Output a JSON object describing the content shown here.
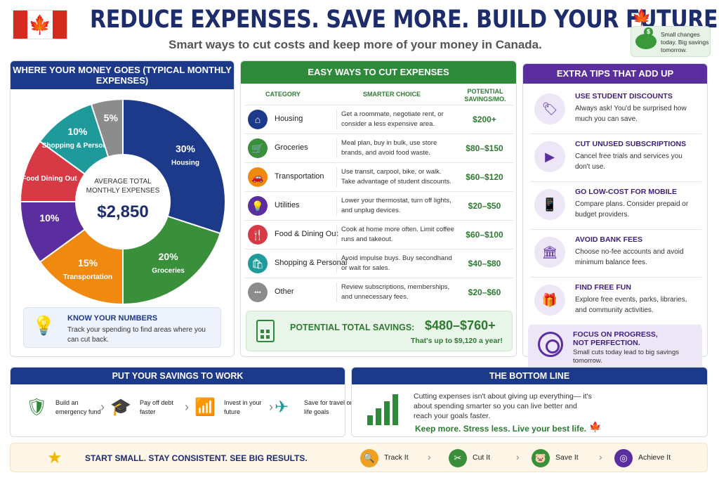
{
  "header": {
    "headline": "REDUCE EXPENSES. SAVE MORE. BUILD YOUR FUTURE.",
    "subtitle": "Smart ways to cut costs and keep more of your money in Canada.",
    "badge_text": "Small changes today. Big savings tomorrow."
  },
  "left_panel": {
    "title": "WHERE YOUR MONEY GOES (TYPICAL MONTHLY EXPENSES)",
    "center_label": "AVERAGE TOTAL MONTHLY EXPENSES",
    "center_value": "$2,850",
    "segments": [
      {
        "label": "Housing",
        "pct_text": "30%",
        "value": 30,
        "color": "#1d3a8a",
        "icon": "house-icon"
      },
      {
        "label": "Groceries",
        "pct_text": "20%",
        "value": 20,
        "color": "#3a8f3a",
        "icon": "cart-icon"
      },
      {
        "label": "Transportation",
        "pct_text": "15%",
        "value": 15,
        "color": "#f0890f",
        "icon": "car-icon"
      },
      {
        "label": "",
        "pct_text": "10%",
        "value": 10,
        "color": "#5b2ea0",
        "icon": "bulb-icon"
      },
      {
        "label": "Food Dining Out",
        "pct_text": "",
        "value": 10,
        "color": "#d83a45",
        "icon": "fork-knife-icon"
      },
      {
        "label": "Shopping & Personal",
        "pct_text": "10%",
        "value": 10,
        "color": "#1e9a9a",
        "icon": ""
      },
      {
        "label": "",
        "pct_text": "5%",
        "value": 5,
        "color": "#8c8c8c",
        "icon": "dots-icon"
      }
    ],
    "know_title": "KNOW YOUR NUMBERS",
    "know_text": "Track your spending to find areas where you can cut back."
  },
  "middle_panel": {
    "title": "EASY WAYS TO CUT EXPENSES",
    "col_category": "CATEGORY",
    "col_choice": "SMARTER CHOICE",
    "col_savings": "POTENTIAL SAVINGS/MO.",
    "rows": [
      {
        "category": "Housing",
        "choice": "Get a roommate, negotiate rent, or consider a less expensive area.",
        "savings": "$200+",
        "color": "#1d3a8a",
        "icon": "house-icon",
        "glyph": "⌂"
      },
      {
        "category": "Groceries",
        "choice": "Meal plan, buy in bulk, use store brands, and avoid food waste.",
        "savings": "$80–$150",
        "color": "#3a8f3a",
        "icon": "cart-icon",
        "glyph": "🛒"
      },
      {
        "category": "Transportation",
        "choice": "Use transit, carpool, bike, or walk. Take advantage of student discounts.",
        "savings": "$60–$120",
        "color": "#f0890f",
        "icon": "car-icon",
        "glyph": "🚗"
      },
      {
        "category": "Utilities",
        "choice": "Lower your thermostat, turn off lights, and unplug devices.",
        "savings": "$20–$50",
        "color": "#5b2ea0",
        "icon": "bulb-icon",
        "glyph": "💡"
      },
      {
        "category": "Food & Dining Out",
        "choice": "Cook at home more often. Limit coffee runs and takeout.",
        "savings": "$60–$100",
        "color": "#d83a45",
        "icon": "fork-knife-icon",
        "glyph": "🍴"
      },
      {
        "category": "Shopping & Personal",
        "choice": "Avoid impulse buys. Buy secondhand or wait for sales.",
        "savings": "$40–$80",
        "color": "#1e9a9a",
        "icon": "bag-icon",
        "glyph": "🛍"
      },
      {
        "category": "Other",
        "choice": "Review subscriptions, memberships, and unnecessary fees.",
        "savings": "$20–$60",
        "color": "#8c8c8c",
        "icon": "dots-icon",
        "glyph": "•••"
      }
    ],
    "total_label": "POTENTIAL TOTAL SAVINGS:",
    "total_value": "$480–$760+",
    "total_year": "That's up to $9,120 a year!"
  },
  "right_panel": {
    "title": "EXTRA TIPS THAT ADD UP",
    "tips": [
      {
        "title": "USE STUDENT DISCOUNTS",
        "text": "Always ask! You'd be surprised how much you can save.",
        "icon": "tag-icon",
        "glyph": "🏷"
      },
      {
        "title": "CUT UNUSED SUBSCRIPTIONS",
        "text": "Cancel free trials and services you don't use.",
        "icon": "play-icon",
        "glyph": "▶"
      },
      {
        "title": "GO LOW-COST FOR MOBILE",
        "text": "Compare plans. Consider prepaid or budget providers.",
        "icon": "phone-icon",
        "glyph": "📱"
      },
      {
        "title": "AVOID BANK FEES",
        "text": "Choose no-fee accounts and avoid minimum balance fees.",
        "icon": "bank-icon",
        "glyph": "🏛"
      },
      {
        "title": "FIND FREE FUN",
        "text": "Explore free events, parks, libraries, and community activities.",
        "icon": "gift-icon",
        "glyph": "🎁"
      }
    ],
    "focus_title": "FOCUS ON PROGRESS, NOT PERFECTION.",
    "focus_text": "Small cuts today lead to big savings tomorrow."
  },
  "savings_panel": {
    "title": "PUT YOUR SAVINGS TO WORK",
    "steps": [
      {
        "label": "Build an emergency fund",
        "icon": "emergency-fund-icon",
        "glyph": "🛡",
        "color": "#2e8a3a"
      },
      {
        "label": "Pay off debt faster",
        "icon": "graduation-cap-icon",
        "glyph": "🎓",
        "color": "#5b2ea0"
      },
      {
        "label": "Invest in your future",
        "icon": "growth-bars-icon",
        "glyph": "📶",
        "color": "#f0890f"
      },
      {
        "label": "Save for travel or life goals",
        "icon": "airplane-icon",
        "glyph": "✈",
        "color": "#1e9a9a"
      }
    ]
  },
  "bottom_line": {
    "title": "THE BOTTOM LINE",
    "text": "Cutting expenses isn't about giving up everything— it's about spending smarter so you can live better and reach your goals faster.",
    "tagline": "Keep more. Stress less. Live your best life."
  },
  "footer": {
    "text": "START SMALL. STAY CONSISTENT. SEE BIG RESULTS.",
    "steps": [
      {
        "label": "Track It",
        "icon": "magnifier-icon",
        "glyph": "🔍",
        "color": "#f0a020"
      },
      {
        "label": "Cut It",
        "icon": "scissors-icon",
        "glyph": "✂",
        "color": "#3a8f3a"
      },
      {
        "label": "Save It",
        "icon": "piggy-bank-icon",
        "glyph": "🐷",
        "color": "#3a8f3a"
      },
      {
        "label": "Achieve It",
        "icon": "target-icon",
        "glyph": "◎",
        "color": "#5b2ea0"
      }
    ]
  }
}
